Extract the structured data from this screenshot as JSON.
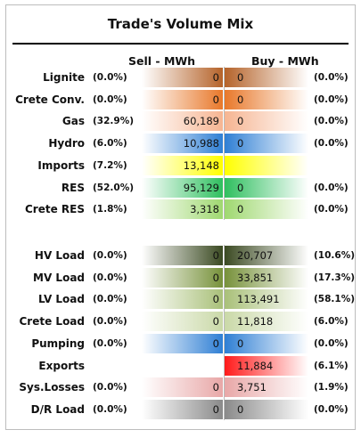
{
  "title": "Trade's Volume Mix",
  "chart_data": {
    "type": "table",
    "columns": [
      "Sell - MWh",
      "Buy - MWh"
    ],
    "groups": [
      {
        "rows": [
          {
            "label": "Lignite",
            "sell_pct": "(0.0%)",
            "sell": "0",
            "buy": "0",
            "buy_pct": "(0.0%)",
            "color": "#b5632a"
          },
          {
            "label": "Crete Conv.",
            "sell_pct": "(0.0%)",
            "sell": "0",
            "buy": "0",
            "buy_pct": "(0.0%)",
            "color": "#e8782a"
          },
          {
            "label": "Gas",
            "sell_pct": "(32.9%)",
            "sell": "60,189",
            "buy": "0",
            "buy_pct": "(0.0%)",
            "color": "#f6b592"
          },
          {
            "label": "Hydro",
            "sell_pct": "(6.0%)",
            "sell": "10,988",
            "buy": "0",
            "buy_pct": "(0.0%)",
            "color": "#2f7fd4"
          },
          {
            "label": "Imports",
            "sell_pct": "(7.2%)",
            "sell": "13,148",
            "buy": "",
            "buy_pct": "",
            "color": "#ffff00"
          },
          {
            "label": "RES",
            "sell_pct": "(52.0%)",
            "sell": "95,129",
            "buy": "0",
            "buy_pct": "(0.0%)",
            "color": "#2fbf5f"
          },
          {
            "label": "Crete RES",
            "sell_pct": "(1.8%)",
            "sell": "3,318",
            "buy": "0",
            "buy_pct": "(0.0%)",
            "color": "#9fd870"
          }
        ]
      },
      {
        "rows": [
          {
            "label": "HV Load",
            "sell_pct": "(0.0%)",
            "sell": "0",
            "buy": "20,707",
            "buy_pct": "(10.6%)",
            "color": "#3b4a22"
          },
          {
            "label": "MV Load",
            "sell_pct": "(0.0%)",
            "sell": "0",
            "buy": "33,851",
            "buy_pct": "(17.3%)",
            "color": "#77913a"
          },
          {
            "label": "LV Load",
            "sell_pct": "(0.0%)",
            "sell": "0",
            "buy": "113,491",
            "buy_pct": "(58.1%)",
            "color": "#a9c079"
          },
          {
            "label": "Crete Load",
            "sell_pct": "(0.0%)",
            "sell": "0",
            "buy": "11,818",
            "buy_pct": "(6.0%)",
            "color": "#cad9a8"
          },
          {
            "label": "Pumping",
            "sell_pct": "(0.0%)",
            "sell": "0",
            "buy": "0",
            "buy_pct": "(0.0%)",
            "color": "#2f7fd4"
          },
          {
            "label": "Exports",
            "sell_pct": "",
            "sell": "",
            "buy": "11,884",
            "buy_pct": "(6.1%)",
            "color": "#ff1a1a"
          },
          {
            "label": "Sys.Losses",
            "sell_pct": "(0.0%)",
            "sell": "0",
            "buy": "3,751",
            "buy_pct": "(1.9%)",
            "color": "#e8a7a7"
          },
          {
            "label": "D/R Load",
            "sell_pct": "(0.0%)",
            "sell": "0",
            "buy": "0",
            "buy_pct": "(0.0%)",
            "color": "#8a8a8a"
          }
        ]
      }
    ]
  }
}
